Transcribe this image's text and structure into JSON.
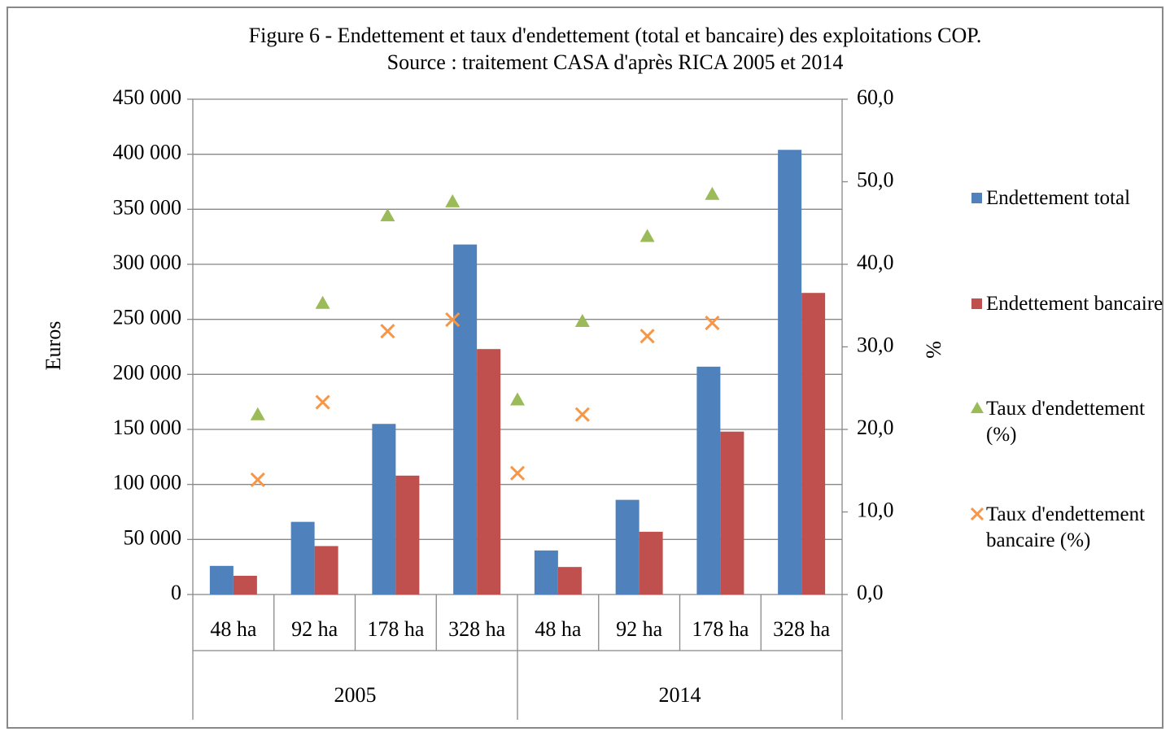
{
  "chart_data": {
    "type": "bar",
    "title": "Figure 6 - Endettement et taux d'endettement (total et bancaire) des exploitations COP.",
    "subtitle": "Source :  traitement CASA d'après RICA 2005 et 2014",
    "ylabel": "Euros",
    "y2label": "%",
    "categories": [
      "48 ha",
      "92 ha",
      "178 ha",
      "328 ha",
      "48 ha",
      "92 ha",
      "178 ha",
      "328 ha"
    ],
    "groups": [
      "2005",
      "2014"
    ],
    "ylim": [
      0,
      450000
    ],
    "yticks": [
      0,
      {
        "value": 50000,
        "label": "50 000"
      },
      {
        "value": 100000,
        "label": "100 000"
      },
      {
        "value": 150000,
        "label": "150 000"
      },
      {
        "value": 200000,
        "label": "200 000"
      },
      {
        "value": 250000,
        "label": "250 000"
      },
      {
        "value": 300000,
        "label": "300 000"
      },
      {
        "value": 350000,
        "label": "350 000"
      },
      {
        "value": 400000,
        "label": "400 000"
      },
      {
        "value": 450000,
        "label": "450 000"
      }
    ],
    "y2lim": [
      0,
      60
    ],
    "y2ticks": [
      {
        "value": 0,
        "label": "0,0"
      },
      {
        "value": 10,
        "label": "10,0"
      },
      {
        "value": 20,
        "label": "20,0"
      },
      {
        "value": 30,
        "label": "30,0"
      },
      {
        "value": 40,
        "label": "40,0"
      },
      {
        "value": 50,
        "label": "50,0"
      },
      {
        "value": 60,
        "label": "60,0"
      }
    ],
    "grid": true,
    "series": [
      {
        "name": "Endettement total",
        "color": "#4f81bd",
        "kind": "bar",
        "values": [
          26000,
          66000,
          155000,
          318000,
          40000,
          86000,
          207000,
          404000
        ]
      },
      {
        "name": "Endettement bancaire",
        "color": "#c0504d",
        "kind": "bar",
        "values": [
          17000,
          44000,
          108000,
          223000,
          25000,
          57000,
          148000,
          274000
        ]
      },
      {
        "name": "Taux d'endettement (%)",
        "color": "#9bbb59",
        "kind": "triangle",
        "axis": "y2",
        "values": [
          21.8,
          35.3,
          45.9,
          47.6,
          23.6,
          33.1,
          43.4,
          48.5
        ]
      },
      {
        "name": "Taux d'endettement bancaire (%)",
        "color": "#f79646",
        "kind": "cross",
        "axis": "y2",
        "values": [
          13.9,
          23.3,
          31.9,
          33.3,
          14.7,
          21.8,
          31.3,
          32.9
        ]
      }
    ]
  }
}
